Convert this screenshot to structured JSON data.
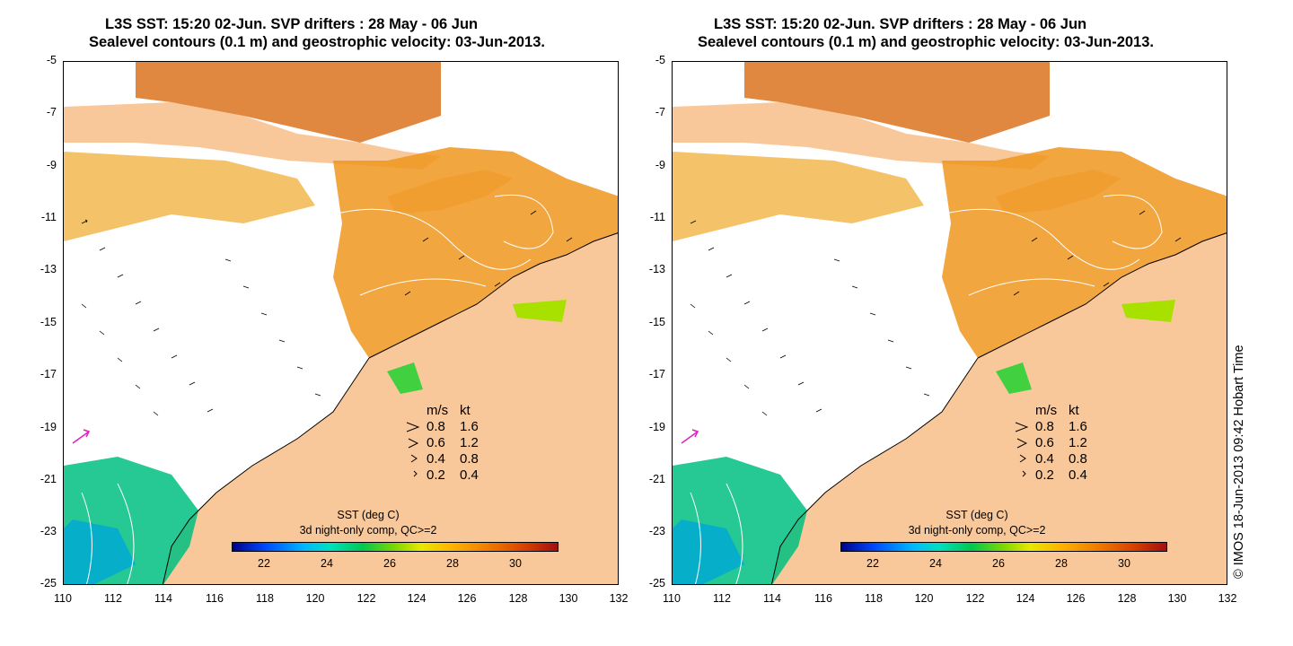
{
  "panels": [
    {
      "title_line1": "L3S SST: 15:20 02-Jun. SVP drifters : 28 May - 06 Jun",
      "title_line2": "Sealevel contours (0.1 m) and geostrophic velocity: 03-Jun-2013."
    },
    {
      "title_line1": "L3S SST: 15:20 02-Jun. SVP drifters : 28 May - 06 Jun",
      "title_line2": "Sealevel contours (0.1 m) and geostrophic velocity: 03-Jun-2013."
    }
  ],
  "axes": {
    "y_ticks": [
      "-5",
      "-7",
      "-9",
      "-11",
      "-13",
      "-15",
      "-17",
      "-19",
      "-21",
      "-23",
      "-25"
    ],
    "x_ticks": [
      "110",
      "112",
      "114",
      "116",
      "118",
      "120",
      "122",
      "124",
      "126",
      "128",
      "130",
      "132"
    ],
    "lat_range": [
      -25,
      -5
    ],
    "lon_range": [
      110,
      132
    ]
  },
  "velocity_legend": {
    "header_ms": "m/s",
    "header_kt": "kt",
    "rows": [
      {
        "ms": "0.8",
        "kt": "1.6"
      },
      {
        "ms": "0.6",
        "kt": "1.2"
      },
      {
        "ms": "0.4",
        "kt": "0.8"
      },
      {
        "ms": "0.2",
        "kt": "0.4"
      }
    ]
  },
  "colorbar": {
    "title_line1": "SST (deg C)",
    "title_line2": "3d night-only comp, QC>=2",
    "ticks": [
      "22",
      "24",
      "26",
      "28",
      "30"
    ],
    "range": [
      21,
      31.4
    ]
  },
  "credit": "© IMOS 18-Jun-2013 09:42 Hobart Time",
  "colors": {
    "land": "#f9c89a",
    "sst_warm": "#f0961e",
    "sst_cool": "#00c850",
    "drifter": "#e020c0"
  }
}
